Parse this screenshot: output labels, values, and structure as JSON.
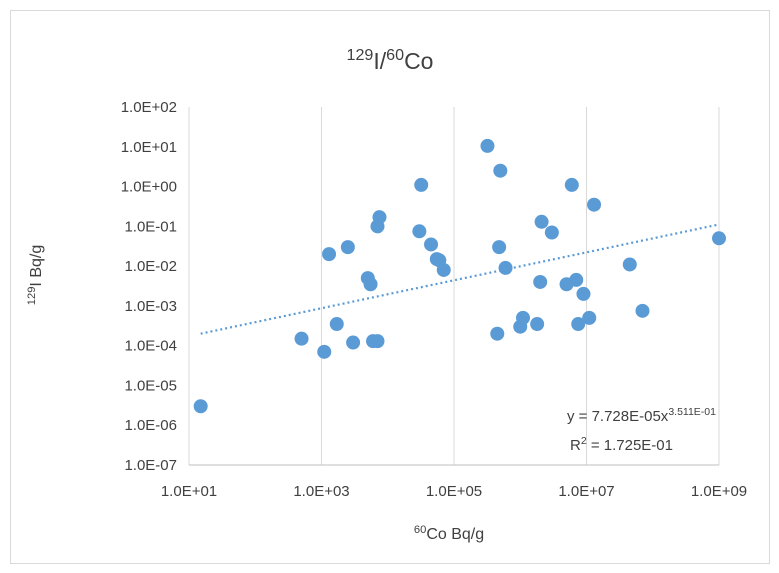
{
  "chart_data": {
    "type": "scatter",
    "title": {
      "sup": "129",
      "base": "I/",
      "sup2": "60",
      "base2": "Co"
    },
    "xlabel": {
      "sup": "60",
      "base": "Co Bq/g"
    },
    "ylabel": {
      "sup": "129",
      "base": "I Bq/g"
    },
    "x_scale": "log",
    "y_scale": "log",
    "xlim": [
      10,
      1000000000
    ],
    "ylim": [
      1e-07,
      100
    ],
    "x_ticks": [
      "1.0E+01",
      "1.0E+03",
      "1.0E+05",
      "1.0E+07",
      "1.0E+09"
    ],
    "y_ticks": [
      "1.0E-07",
      "1.0E-06",
      "1.0E-05",
      "1.0E-04",
      "1.0E-03",
      "1.0E-02",
      "1.0E-01",
      "1.0E+00",
      "1.0E+01",
      "1.0E+02"
    ],
    "grid": "vertical major",
    "marker_color": "#5b9bd5",
    "trendline_color": "#5b9bd5",
    "trendline": {
      "type": "power",
      "a": 7.728e-05,
      "b": 0.3511,
      "equation_label": {
        "prefix": "y = 7.728E-05x",
        "exponent": "3.511E-01"
      },
      "r2_label": {
        "prefix": "R",
        "sup": "2",
        "suffix": " = 1.725E-01"
      }
    },
    "points": [
      {
        "x": 15,
        "y": 3e-06
      },
      {
        "x": 500,
        "y": 0.00015
      },
      {
        "x": 1100,
        "y": 7e-05
      },
      {
        "x": 1300,
        "y": 0.02
      },
      {
        "x": 1700,
        "y": 0.00035
      },
      {
        "x": 2500,
        "y": 0.03
      },
      {
        "x": 3000,
        "y": 0.00012
      },
      {
        "x": 5000,
        "y": 0.005
      },
      {
        "x": 5500,
        "y": 0.0035
      },
      {
        "x": 6000,
        "y": 0.00013
      },
      {
        "x": 7000,
        "y": 0.00013
      },
      {
        "x": 7000,
        "y": 0.1
      },
      {
        "x": 7500,
        "y": 0.17
      },
      {
        "x": 30000,
        "y": 0.075
      },
      {
        "x": 32000,
        "y": 1.1
      },
      {
        "x": 45000,
        "y": 0.035
      },
      {
        "x": 55000,
        "y": 0.015
      },
      {
        "x": 60000,
        "y": 0.014
      },
      {
        "x": 70000,
        "y": 0.008
      },
      {
        "x": 320000,
        "y": 10.5
      },
      {
        "x": 450000,
        "y": 0.0002
      },
      {
        "x": 480000,
        "y": 0.03
      },
      {
        "x": 500000,
        "y": 2.5
      },
      {
        "x": 600000,
        "y": 0.009
      },
      {
        "x": 1000000,
        "y": 0.0003
      },
      {
        "x": 1100000,
        "y": 0.0005
      },
      {
        "x": 1800000,
        "y": 0.00035
      },
      {
        "x": 2000000,
        "y": 0.004
      },
      {
        "x": 2100000,
        "y": 0.13
      },
      {
        "x": 3000000,
        "y": 0.07
      },
      {
        "x": 5000000,
        "y": 0.0035
      },
      {
        "x": 6000000,
        "y": 1.1
      },
      {
        "x": 7000000,
        "y": 0.0045
      },
      {
        "x": 7500000,
        "y": 0.00035
      },
      {
        "x": 9000000,
        "y": 0.002
      },
      {
        "x": 11000000,
        "y": 0.0005
      },
      {
        "x": 13000000,
        "y": 0.35
      },
      {
        "x": 45000000,
        "y": 0.011
      },
      {
        "x": 70000000,
        "y": 0.00075
      },
      {
        "x": 1000000000,
        "y": 0.05
      }
    ]
  }
}
